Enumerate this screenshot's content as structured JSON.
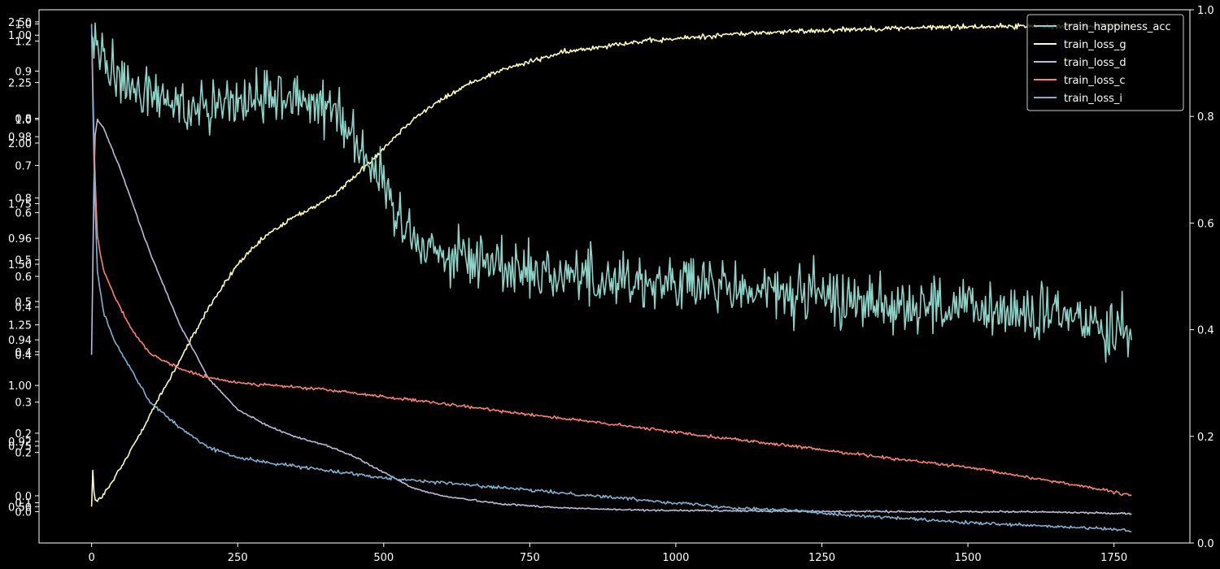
{
  "chart_data": {
    "type": "line",
    "title": "",
    "xlabel": "",
    "ylabel": "",
    "xlim": [
      -90,
      1880
    ],
    "x_ticks": [
      0,
      250,
      500,
      750,
      1000,
      1250,
      1500,
      1750
    ],
    "right_axis": {
      "ylim": [
        0.0,
        1.0
      ],
      "ticks": [
        "0.0",
        "0.2",
        "0.4",
        "0.6",
        "0.8",
        "1.0"
      ]
    },
    "left_axes": [
      {
        "id": "acc",
        "ylim": [
          0.9,
          1.005
        ],
        "ticks": [
          "0.92",
          "0.94",
          "0.96",
          "0.98",
          "1.00"
        ]
      },
      {
        "id": "loss_g",
        "ylim": [
          0.35,
          2.55
        ],
        "ticks": [
          "0.50",
          "0.75",
          "1.00",
          "1.25",
          "1.50",
          "1.75",
          "2.00",
          "2.25",
          "2.50"
        ]
      },
      {
        "id": "loss_d",
        "ylim": [
          -0.08,
          1.28
        ],
        "ticks": [
          "0.0",
          "0.2",
          "0.4",
          "0.6",
          "0.8",
          "1.0",
          "1.2"
        ]
      },
      {
        "id": "loss_c",
        "ylim": [
          -0.1,
          1.03
        ],
        "ticks": [
          "0.0",
          "0.4",
          "0.5",
          "0.6",
          "0.7",
          "0.8",
          "0.9",
          "1.0"
        ]
      },
      {
        "id": "loss_i",
        "ylim": [
          0.02,
          1.08
        ],
        "ticks": [
          "0.1",
          "0.2",
          "0.3",
          "0.4",
          "0.5"
        ]
      }
    ],
    "legend_position": "top-right",
    "series": [
      {
        "name": "train_happiness_acc",
        "color": "#8dd3c7",
        "axis": "acc",
        "x": [
          0,
          10,
          30,
          60,
          100,
          150,
          200,
          250,
          300,
          350,
          400,
          430,
          460,
          490,
          520,
          560,
          600,
          700,
          800,
          900,
          1000,
          1100,
          1200,
          1300,
          1400,
          1500,
          1600,
          1700,
          1750,
          1780
        ],
        "y": [
          1.0,
          0.997,
          0.993,
          0.99,
          0.988,
          0.986,
          0.987,
          0.987,
          0.988,
          0.988,
          0.987,
          0.984,
          0.978,
          0.972,
          0.965,
          0.96,
          0.957,
          0.955,
          0.953,
          0.952,
          0.951,
          0.95,
          0.949,
          0.948,
          0.947,
          0.946,
          0.945,
          0.944,
          0.943,
          0.943
        ],
        "noise": 0.0055
      },
      {
        "name": "train_loss_g",
        "color": "#ffffb3",
        "axis": "loss_g",
        "x": [
          0,
          2,
          5,
          10,
          30,
          60,
          100,
          150,
          200,
          250,
          300,
          350,
          400,
          450,
          500,
          550,
          600,
          650,
          700,
          800,
          900,
          1000,
          1100,
          1200,
          1300,
          1400,
          1500,
          1600,
          1700,
          1780
        ],
        "y": [
          0.5,
          0.65,
          0.53,
          0.52,
          0.58,
          0.7,
          0.88,
          1.1,
          1.32,
          1.5,
          1.62,
          1.7,
          1.76,
          1.86,
          1.98,
          2.1,
          2.18,
          2.25,
          2.3,
          2.37,
          2.41,
          2.43,
          2.45,
          2.46,
          2.47,
          2.475,
          2.48,
          2.482,
          2.484,
          2.485
        ],
        "noise": 0.01
      },
      {
        "name": "train_loss_d",
        "color": "#bebada",
        "axis": "loss_d",
        "x": [
          0,
          5,
          10,
          20,
          50,
          100,
          150,
          200,
          250,
          300,
          350,
          400,
          450,
          500,
          550,
          600,
          650,
          700,
          800,
          900,
          1000,
          1200,
          1400,
          1600,
          1780
        ],
        "y": [
          0.4,
          0.95,
          1.0,
          0.98,
          0.87,
          0.66,
          0.48,
          0.34,
          0.26,
          0.22,
          0.19,
          0.17,
          0.14,
          0.1,
          0.06,
          0.04,
          0.03,
          0.02,
          0.01,
          0.005,
          0.003,
          0.001,
          0.0,
          0.0,
          -0.005
        ],
        "noise": 0.002
      },
      {
        "name": "train_loss_c",
        "color": "#fb8072",
        "axis": "loss_c",
        "x": [
          0,
          2,
          5,
          10,
          20,
          40,
          70,
          100,
          150,
          200,
          250,
          300,
          400,
          500,
          600,
          700,
          800,
          900,
          1000,
          1100,
          1200,
          1300,
          1400,
          1500,
          1600,
          1700,
          1780
        ],
        "y": [
          1.0,
          0.88,
          0.7,
          0.55,
          0.48,
          0.42,
          0.35,
          0.3,
          0.27,
          0.25,
          0.24,
          0.235,
          0.225,
          0.21,
          0.195,
          0.18,
          0.165,
          0.15,
          0.135,
          0.12,
          0.105,
          0.09,
          0.075,
          0.06,
          0.04,
          0.02,
          0.0
        ],
        "noise": 0.003
      },
      {
        "name": "train_loss_i",
        "color": "#80b1d3",
        "axis": "loss_i",
        "x": [
          0,
          2,
          5,
          10,
          20,
          40,
          70,
          100,
          150,
          200,
          250,
          300,
          400,
          500,
          600,
          700,
          800,
          900,
          1000,
          1100,
          1200,
          1300,
          1400,
          1500,
          1600,
          1700,
          1780
        ],
        "y": [
          1.05,
          0.9,
          0.72,
          0.56,
          0.48,
          0.42,
          0.36,
          0.3,
          0.25,
          0.21,
          0.19,
          0.18,
          0.165,
          0.15,
          0.14,
          0.13,
          0.12,
          0.11,
          0.1,
          0.09,
          0.085,
          0.075,
          0.068,
          0.06,
          0.055,
          0.05,
          0.045
        ],
        "noise": 0.003
      }
    ]
  }
}
